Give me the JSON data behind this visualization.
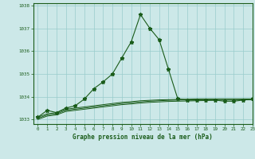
{
  "title": "Graphe pression niveau de la mer (hPa)",
  "background_color": "#cce8e8",
  "grid_color": "#99cccc",
  "line_color": "#1a5c1a",
  "xlim": [
    -0.5,
    23
  ],
  "ylim": [
    1032.8,
    1038.1
  ],
  "yticks": [
    1033,
    1034,
    1035,
    1036,
    1037,
    1038
  ],
  "xticks": [
    0,
    1,
    2,
    3,
    4,
    5,
    6,
    7,
    8,
    9,
    10,
    11,
    12,
    13,
    14,
    15,
    16,
    17,
    18,
    19,
    20,
    21,
    22,
    23
  ],
  "series1_x": [
    0,
    1,
    2,
    3,
    4,
    5,
    6,
    7,
    8,
    9,
    10,
    11,
    12,
    13,
    14,
    15,
    16,
    17,
    18,
    19,
    20,
    21,
    22,
    23
  ],
  "series1_y": [
    1033.1,
    1033.4,
    1033.3,
    1033.5,
    1033.6,
    1033.9,
    1034.35,
    1034.65,
    1035.0,
    1035.7,
    1036.4,
    1037.6,
    1037.0,
    1036.5,
    1035.2,
    1033.9,
    1033.85,
    1033.85,
    1033.85,
    1033.85,
    1033.8,
    1033.8,
    1033.85,
    1033.9
  ],
  "series2_x": [
    0,
    1,
    2,
    3,
    4,
    5,
    6,
    7,
    8,
    9,
    10,
    11,
    12,
    13,
    14,
    15,
    16,
    17,
    18,
    19,
    20,
    21,
    22,
    23
  ],
  "series2_y": [
    1033.1,
    1033.25,
    1033.3,
    1033.45,
    1033.5,
    1033.55,
    1033.6,
    1033.65,
    1033.7,
    1033.75,
    1033.78,
    1033.82,
    1033.84,
    1033.86,
    1033.87,
    1033.88,
    1033.89,
    1033.9,
    1033.9,
    1033.9,
    1033.9,
    1033.9,
    1033.9,
    1033.9
  ],
  "series3_x": [
    0,
    1,
    2,
    3,
    4,
    5,
    6,
    7,
    8,
    9,
    10,
    11,
    12,
    13,
    14,
    15,
    16,
    17,
    18,
    19,
    20,
    21,
    22,
    23
  ],
  "series3_y": [
    1033.05,
    1033.2,
    1033.25,
    1033.4,
    1033.45,
    1033.5,
    1033.55,
    1033.6,
    1033.65,
    1033.7,
    1033.73,
    1033.77,
    1033.8,
    1033.82,
    1033.84,
    1033.85,
    1033.86,
    1033.87,
    1033.88,
    1033.88,
    1033.89,
    1033.89,
    1033.9,
    1033.9
  ],
  "series4_x": [
    0,
    1,
    2,
    3,
    4,
    5,
    6,
    7,
    8,
    9,
    10,
    11,
    12,
    13,
    14,
    15,
    16,
    17,
    18,
    19,
    20,
    21,
    22,
    23
  ],
  "series4_y": [
    1033.0,
    1033.15,
    1033.2,
    1033.35,
    1033.4,
    1033.45,
    1033.5,
    1033.55,
    1033.6,
    1033.65,
    1033.68,
    1033.72,
    1033.75,
    1033.77,
    1033.79,
    1033.8,
    1033.81,
    1033.82,
    1033.83,
    1033.84,
    1033.85,
    1033.85,
    1033.86,
    1033.86
  ]
}
